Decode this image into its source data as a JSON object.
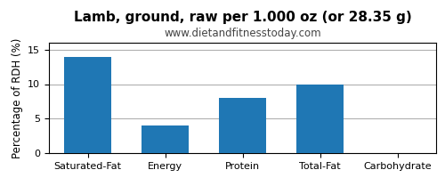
{
  "chart_data": {
    "type": "bar",
    "title": "Lamb, ground, raw per 1.000 oz (or 28.35 g)",
    "subtitle": "www.dietandfitnesstoday.com",
    "ylabel": "Percentage of RDH (%)",
    "categories": [
      "Saturated-Fat",
      "Energy",
      "Protein",
      "Total-Fat",
      "Carbohydrate"
    ],
    "values": [
      14.0,
      4.0,
      8.0,
      10.0,
      0.0
    ],
    "ylim": [
      0,
      16
    ],
    "yticks": [
      0,
      5,
      10,
      15
    ],
    "grid": true
  }
}
